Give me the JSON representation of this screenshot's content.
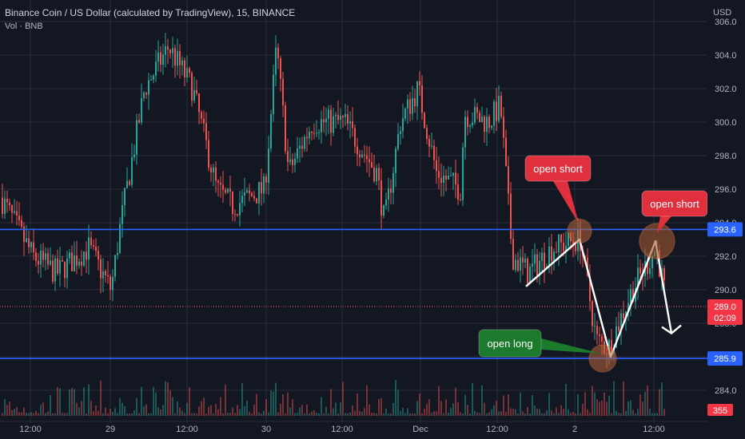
{
  "header": {
    "title": "Binance Coin / US Dollar (calculated by TradingView), 15, BINANCE",
    "volume_label": "Vol · BNB"
  },
  "chart_data": {
    "type": "candlestick",
    "currency_label": "USD",
    "price_ticks": [
      "306.0",
      "304.0",
      "302.0",
      "300.0",
      "298.0",
      "296.0",
      "294.0",
      "292.0",
      "290.0",
      "288.0",
      "286.0",
      "284.0"
    ],
    "time_ticks": [
      "12:00",
      "29",
      "12:00",
      "30",
      "12:00",
      "Dec",
      "12:00",
      "2",
      "12:00"
    ],
    "ylim": [
      283,
      306.5
    ],
    "current_price": "289.0",
    "countdown": "02:09",
    "volume_value": "355",
    "levels": [
      {
        "label": "293.6",
        "value": 293.6,
        "color": "#2962ff"
      },
      {
        "label": "285.9",
        "value": 285.9,
        "color": "#2962ff"
      }
    ],
    "annotations": [
      {
        "text": "open short",
        "color": "#e0303e"
      },
      {
        "text": "open short",
        "color": "#e0303e"
      },
      {
        "text": "open long",
        "color": "#1b7a2c"
      }
    ],
    "trade_path_prices": [
      290.2,
      293.0,
      286.0,
      292.9,
      287.4
    ],
    "path_end_price": 286.5,
    "colors": {
      "up": "#26a69a",
      "down": "#ef5350",
      "bg": "#131722",
      "grid": "#2a2e39",
      "axis_text": "#b2b5be"
    }
  }
}
